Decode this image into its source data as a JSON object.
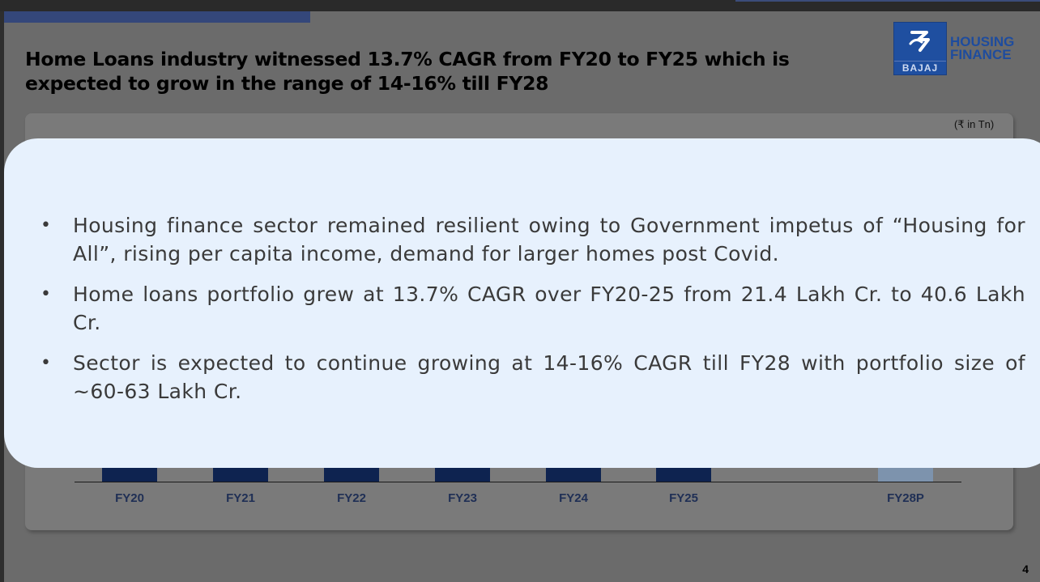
{
  "title": {
    "line1": "Home Loans industry witnessed 13.7% CAGR from FY20 to FY25 which is",
    "line2": "expected to grow in the range of 14-16% till FY28"
  },
  "logo": {
    "badge_text": "BAJAJ",
    "line1": "HOUSING",
    "line2": "FINANCE",
    "brand_color": "#1f4fa0"
  },
  "chart": {
    "unit": "(₹ in Tn)",
    "categories": [
      "FY20",
      "FY21",
      "FY22",
      "FY23",
      "FY24",
      "FY25",
      "FY28P"
    ]
  },
  "chart_data": {
    "type": "bar",
    "categories": [
      "FY20",
      "FY21",
      "FY22",
      "FY23",
      "FY24",
      "FY25",
      "FY28P"
    ],
    "unit": "(₹ in Tn)",
    "colors": {
      "actual": "#0e2350",
      "projected": "#7d93ad"
    }
  },
  "popup": {
    "bullets": [
      "Housing finance sector remained resilient owing to Government impetus of “Housing for All”, rising per capita income, demand for larger homes post Covid.",
      "Home loans portfolio grew at 13.7% CAGR over FY20-25 from 21.4 Lakh Cr. to 40.6 Lakh Cr.",
      "Sector is expected to continue growing at 14-16% CAGR till FY28 with portfolio size of ~60-63 Lakh Cr."
    ]
  },
  "footer": {
    "page_number": "4"
  }
}
